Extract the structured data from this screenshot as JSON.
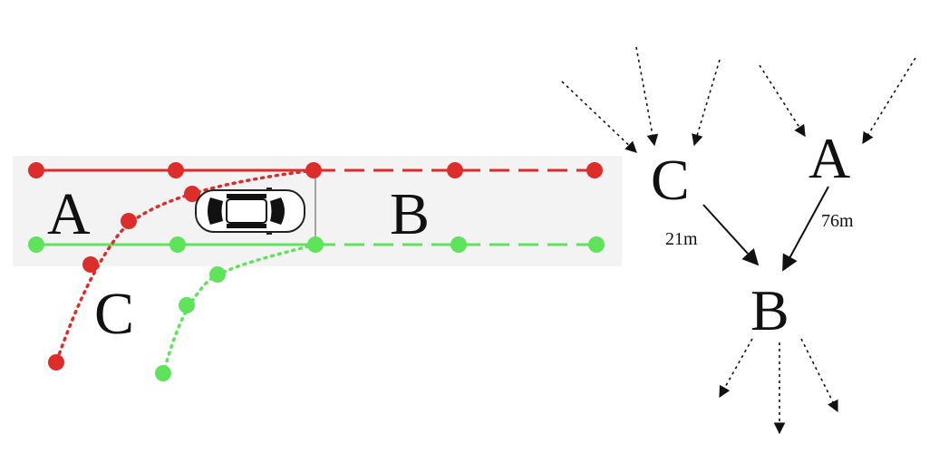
{
  "lane_map": {
    "segment_labels": {
      "a": "A",
      "b": "B",
      "c": "C"
    },
    "colors": {
      "red_lane": "#dc2d2a",
      "green_lane": "#5ee35a",
      "lane_band": "#f3f3f3",
      "vehicle": "#111111"
    },
    "vehicle_icon": "car-top-view-icon"
  },
  "graph": {
    "nodes": {
      "c": "C",
      "a": "A",
      "b": "B"
    },
    "edges": {
      "c_to_b": {
        "distance": "21m"
      },
      "a_to_b": {
        "distance": "76m"
      }
    },
    "colors": {
      "edge": "#111111"
    }
  }
}
